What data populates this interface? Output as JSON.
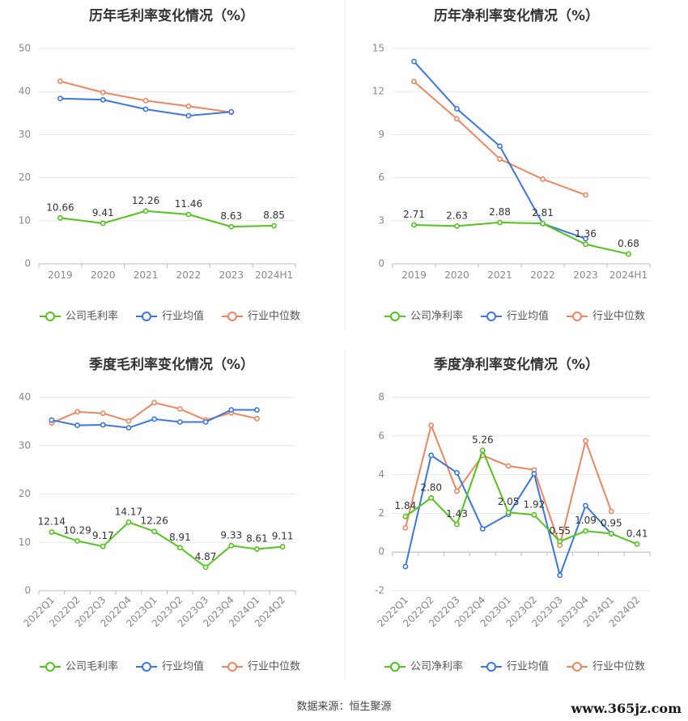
{
  "colors": {
    "company": "#52c41a",
    "industry_avg": "#3a77e0",
    "industry_median": "#f08560",
    "grid": "#e6e6e6",
    "axis": "#666666",
    "label": "#333333"
  },
  "footer": {
    "source": "数据来源：恒生聚源",
    "watermark": "www.365jz.com"
  },
  "chart_data": [
    {
      "type": "line",
      "title": "历年毛利率变化情况（%）",
      "categories": [
        "2019",
        "2020",
        "2021",
        "2022",
        "2023",
        "2024H1"
      ],
      "ylim": [
        0,
        50
      ],
      "yticks": [
        0,
        10,
        20,
        30,
        40,
        50
      ],
      "rotate_xlabels": false,
      "series": [
        {
          "name": "公司毛利率",
          "role": "company",
          "values": [
            10.66,
            9.41,
            12.26,
            11.46,
            8.63,
            8.85
          ],
          "labels": [
            "10.66",
            "9.41",
            "12.26",
            "11.46",
            "8.63",
            "8.85"
          ]
        },
        {
          "name": "行业均值",
          "role": "industry_avg",
          "values": [
            38.4,
            38.1,
            35.9,
            34.4,
            35.3,
            null
          ]
        },
        {
          "name": "行业中位数",
          "role": "industry_median",
          "values": [
            42.4,
            39.8,
            37.9,
            36.6,
            35.2,
            null
          ]
        }
      ]
    },
    {
      "type": "line",
      "title": "历年净利率变化情况（%）",
      "categories": [
        "2019",
        "2020",
        "2021",
        "2022",
        "2023",
        "2024H1"
      ],
      "ylim": [
        0,
        15
      ],
      "yticks": [
        0,
        3,
        6,
        9,
        12,
        15
      ],
      "rotate_xlabels": false,
      "series": [
        {
          "name": "公司净利率",
          "role": "company",
          "values": [
            2.71,
            2.63,
            2.88,
            2.81,
            1.36,
            0.68
          ],
          "labels": [
            "2.71",
            "2.63",
            "2.88",
            "2.81",
            "1.36",
            "0.68"
          ]
        },
        {
          "name": "行业均值",
          "role": "industry_avg",
          "values": [
            14.1,
            10.8,
            8.2,
            2.8,
            1.75,
            null
          ]
        },
        {
          "name": "行业中位数",
          "role": "industry_median",
          "values": [
            12.7,
            10.1,
            7.3,
            5.9,
            4.8,
            null
          ]
        }
      ]
    },
    {
      "type": "line",
      "title": "季度毛利率变化情况（%）",
      "categories": [
        "2022Q1",
        "2022Q2",
        "2022Q3",
        "2022Q4",
        "2023Q1",
        "2023Q2",
        "2023Q3",
        "2023Q4",
        "2024Q1",
        "2024Q2"
      ],
      "ylim": [
        0,
        40
      ],
      "yticks": [
        0,
        10,
        20,
        30,
        40
      ],
      "rotate_xlabels": true,
      "series": [
        {
          "name": "公司毛利率",
          "role": "company",
          "values": [
            12.14,
            10.29,
            9.17,
            14.17,
            12.26,
            8.91,
            4.87,
            9.33,
            8.61,
            9.11
          ],
          "labels": [
            "12.14",
            "10.29",
            "9.17",
            "14.17",
            "12.26",
            "8.91",
            "4.87",
            "9.33",
            "8.61",
            "9.11"
          ]
        },
        {
          "name": "行业均值",
          "role": "industry_avg",
          "values": [
            35.3,
            34.2,
            34.3,
            33.7,
            35.5,
            34.9,
            34.9,
            37.4,
            37.4,
            null
          ]
        },
        {
          "name": "行业中位数",
          "role": "industry_median",
          "values": [
            34.7,
            37.0,
            36.7,
            35.1,
            38.9,
            37.6,
            35.3,
            36.8,
            35.6,
            null
          ]
        }
      ]
    },
    {
      "type": "line",
      "title": "季度净利率变化情况（%）",
      "categories": [
        "2022Q1",
        "2022Q2",
        "2022Q3",
        "2022Q4",
        "2023Q1",
        "2023Q2",
        "2023Q3",
        "2023Q4",
        "2024Q1",
        "2024Q2"
      ],
      "ylim": [
        -2,
        8
      ],
      "yticks": [
        -2,
        0,
        2,
        4,
        6,
        8
      ],
      "rotate_xlabels": true,
      "series": [
        {
          "name": "公司净利率",
          "role": "company",
          "values": [
            1.84,
            2.8,
            1.43,
            5.26,
            2.05,
            1.92,
            0.55,
            1.09,
            0.95,
            0.41
          ],
          "labels": [
            "1.84",
            "2.80",
            "1.43",
            "5.26",
            "2.05",
            "1.92",
            "0.55",
            "1.09",
            "0.95",
            "0.41"
          ]
        },
        {
          "name": "行业均值",
          "role": "industry_avg",
          "values": [
            -0.75,
            5.0,
            4.1,
            1.2,
            1.95,
            4.05,
            -1.2,
            2.4,
            0.95,
            null
          ]
        },
        {
          "name": "行业中位数",
          "role": "industry_median",
          "values": [
            1.25,
            6.55,
            3.15,
            5.0,
            4.45,
            4.25,
            0.35,
            5.75,
            2.1,
            null
          ]
        }
      ]
    }
  ]
}
